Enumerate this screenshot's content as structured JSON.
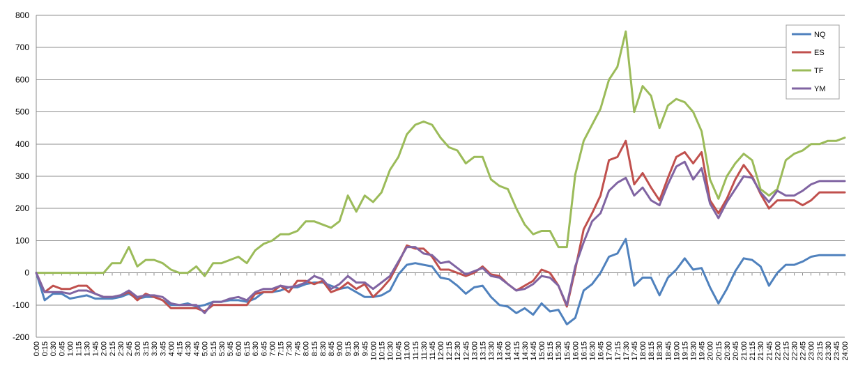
{
  "chart_data": {
    "type": "line",
    "title": "",
    "xlabel": "",
    "ylabel": "",
    "ylim": [
      -200,
      800
    ],
    "yticks": [
      -200,
      -100,
      0,
      100,
      200,
      300,
      400,
      500,
      600,
      700,
      800
    ],
    "grid": "horizontal",
    "legend_position": "top-right",
    "x": [
      "0:00",
      "0:15",
      "0:30",
      "0:45",
      "1:00",
      "1:15",
      "1:30",
      "1:45",
      "2:00",
      "2:15",
      "2:30",
      "2:45",
      "3:00",
      "3:15",
      "3:30",
      "3:45",
      "4:00",
      "4:15",
      "4:30",
      "4:45",
      "5:00",
      "5:15",
      "5:30",
      "5:45",
      "6:00",
      "6:15",
      "6:30",
      "6:45",
      "7:00",
      "7:15",
      "7:30",
      "7:45",
      "8:00",
      "8:15",
      "8:30",
      "8:45",
      "9:00",
      "9:15",
      "9:30",
      "9:45",
      "10:00",
      "10:15",
      "10:30",
      "10:45",
      "11:00",
      "11:15",
      "11:30",
      "11:45",
      "12:00",
      "12:15",
      "12:30",
      "12:45",
      "13:00",
      "13:15",
      "13:30",
      "13:45",
      "14:00",
      "14:15",
      "14:30",
      "14:45",
      "15:00",
      "15:15",
      "15:30",
      "15:45",
      "16:00",
      "16:15",
      "16:30",
      "16:45",
      "17:00",
      "17:15",
      "17:30",
      "17:45",
      "18:00",
      "18:15",
      "18:30",
      "18:45",
      "19:00",
      "19:15",
      "19:30",
      "19:45",
      "20:00",
      "20:15",
      "20:30",
      "20:45",
      "21:00",
      "21:15",
      "21:30",
      "21:45",
      "22:00",
      "22:15",
      "22:30",
      "22:45",
      "23:00",
      "23:15",
      "23:30",
      "23:45",
      "24:00"
    ],
    "series": [
      {
        "name": "NQ",
        "color": "#4F81BD",
        "values": [
          0,
          -85,
          -65,
          -65,
          -80,
          -75,
          -70,
          -80,
          -80,
          -80,
          -75,
          -65,
          -80,
          -75,
          -75,
          -85,
          -100,
          -100,
          -95,
          -105,
          -100,
          -90,
          -90,
          -85,
          -85,
          -90,
          -80,
          -60,
          -60,
          -55,
          -45,
          -45,
          -35,
          -30,
          -30,
          -40,
          -50,
          -45,
          -60,
          -75,
          -75,
          -70,
          -55,
          -5,
          25,
          30,
          25,
          20,
          -15,
          -20,
          -40,
          -65,
          -45,
          -40,
          -75,
          -100,
          -105,
          -125,
          -110,
          -130,
          -95,
          -120,
          -115,
          -160,
          -140,
          -55,
          -35,
          0,
          50,
          60,
          105,
          -40,
          -15,
          -15,
          -70,
          -15,
          10,
          45,
          10,
          15,
          -45,
          -95,
          -50,
          5,
          45,
          40,
          20,
          -40,
          0,
          25,
          25,
          35,
          50,
          55,
          55,
          55,
          55
        ]
      },
      {
        "name": "ES",
        "color": "#C0504D",
        "values": [
          0,
          -60,
          -40,
          -50,
          -50,
          -40,
          -40,
          -65,
          -75,
          -75,
          -70,
          -60,
          -85,
          -65,
          -75,
          -85,
          -110,
          -110,
          -110,
          -110,
          -120,
          -100,
          -100,
          -100,
          -100,
          -100,
          -65,
          -60,
          -60,
          -40,
          -60,
          -25,
          -25,
          -35,
          -25,
          -60,
          -50,
          -30,
          -50,
          -35,
          -75,
          -50,
          -20,
          30,
          85,
          75,
          75,
          50,
          10,
          10,
          0,
          -10,
          0,
          20,
          -5,
          -10,
          -35,
          -55,
          -40,
          -25,
          10,
          0,
          -40,
          -105,
          10,
          135,
          185,
          240,
          350,
          360,
          410,
          275,
          310,
          265,
          225,
          295,
          360,
          375,
          340,
          375,
          225,
          185,
          230,
          290,
          335,
          300,
          245,
          200,
          225,
          225,
          225,
          210,
          225,
          250,
          250,
          250,
          250
        ]
      },
      {
        "name": "TF",
        "color": "#9BBB59",
        "values": [
          0,
          0,
          0,
          0,
          0,
          0,
          0,
          0,
          0,
          30,
          30,
          80,
          20,
          40,
          40,
          30,
          10,
          0,
          0,
          20,
          -10,
          30,
          30,
          40,
          50,
          30,
          70,
          90,
          100,
          120,
          120,
          130,
          160,
          160,
          150,
          140,
          160,
          240,
          190,
          240,
          220,
          250,
          320,
          360,
          430,
          460,
          470,
          460,
          420,
          390,
          380,
          340,
          360,
          360,
          290,
          270,
          260,
          200,
          150,
          120,
          130,
          130,
          80,
          80,
          305,
          410,
          460,
          510,
          600,
          640,
          750,
          500,
          580,
          550,
          450,
          520,
          540,
          530,
          500,
          440,
          290,
          230,
          300,
          340,
          370,
          350,
          260,
          240,
          260,
          350,
          370,
          380,
          400,
          400,
          410,
          410,
          420
        ]
      },
      {
        "name": "YM",
        "color": "#8064A2",
        "values": [
          0,
          -60,
          -60,
          -60,
          -65,
          -55,
          -55,
          -65,
          -75,
          -75,
          -70,
          -55,
          -75,
          -70,
          -70,
          -75,
          -95,
          -100,
          -100,
          -100,
          -125,
          -90,
          -90,
          -80,
          -75,
          -85,
          -60,
          -50,
          -50,
          -40,
          -45,
          -40,
          -30,
          -10,
          -20,
          -50,
          -35,
          -10,
          -30,
          -30,
          -50,
          -30,
          -10,
          35,
          80,
          80,
          60,
          55,
          30,
          35,
          15,
          -5,
          5,
          15,
          -10,
          -15,
          -35,
          -55,
          -50,
          -35,
          -10,
          -15,
          -40,
          -100,
          20,
          95,
          160,
          185,
          255,
          280,
          295,
          240,
          265,
          225,
          210,
          275,
          330,
          345,
          290,
          325,
          215,
          170,
          220,
          260,
          300,
          295,
          250,
          220,
          255,
          240,
          240,
          255,
          275,
          285,
          285,
          285,
          285
        ]
      }
    ]
  }
}
